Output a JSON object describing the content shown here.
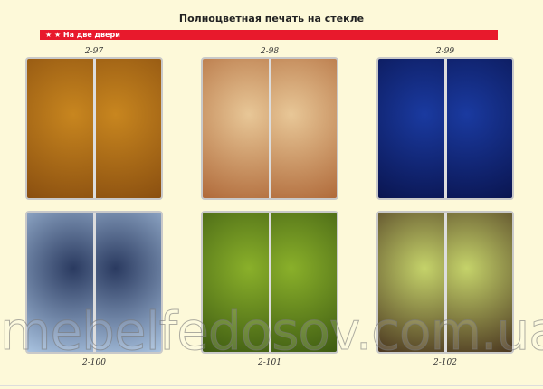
{
  "title": "Полноцветная печать на стекле",
  "section": "★ ★ На две двери",
  "items": [
    {
      "code": "2-97",
      "colors": [
        "#c8861f",
        "#8a4f10"
      ]
    },
    {
      "code": "2-98",
      "colors": [
        "#e8c797",
        "#b06a3a"
      ]
    },
    {
      "code": "2-99",
      "colors": [
        "#1a3aa0",
        "#0a1550"
      ]
    },
    {
      "code": "2-100",
      "colors": [
        "#2a3a60",
        "#a9c3e0"
      ]
    },
    {
      "code": "2-101",
      "colors": [
        "#8ab02a",
        "#3d5a12"
      ]
    },
    {
      "code": "2-102",
      "colors": [
        "#c5d36a",
        "#4a3620"
      ]
    }
  ],
  "watermark": "mebelfedosov.com.ua"
}
